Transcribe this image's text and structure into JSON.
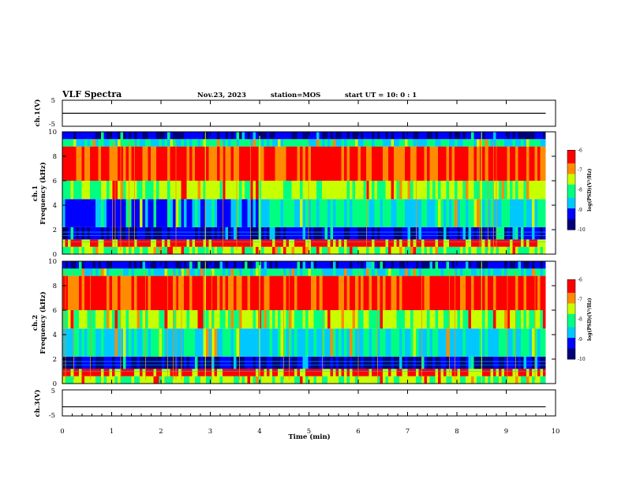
{
  "header": {
    "title": "VLF Spectra",
    "date": "Nov.23, 2023",
    "station": "station=MOS",
    "start_ut": "start UT =  10: 0  : 1"
  },
  "colors": {
    "spectrum": [
      "#00007a",
      "#0000ff",
      "#00c8ff",
      "#00ff80",
      "#c8ff00",
      "#ff8c00",
      "#ff0000",
      "#ffffff"
    ]
  },
  "chart_data": [
    {
      "type": "line",
      "panel": "ch1-voltage",
      "ylabel": "ch.1(V)",
      "y_ticks": [
        "5",
        "-5"
      ],
      "ylim": [
        -5,
        5
      ],
      "xlim": [
        0,
        10
      ],
      "series": [
        {
          "x": [
            0,
            9.8
          ],
          "y": [
            0,
            0
          ]
        }
      ]
    },
    {
      "type": "heatmap",
      "panel": "ch1-spectrogram",
      "ylabel": "ch.1\nFrequency (kHz)",
      "y_ticks": [
        "0",
        "2",
        "4",
        "6",
        "8",
        "10"
      ],
      "ylim": [
        0,
        10
      ],
      "xlim": [
        0,
        10
      ],
      "data_extent_min": 9.8,
      "colorbar": {
        "label": "log(PSD)(V²/Hz)",
        "ticks": [
          "-6",
          "-7",
          "-8",
          "-9",
          "-10"
        ],
        "range": [
          -10,
          -6
        ]
      },
      "events": [
        2.9,
        4.0,
        8.5
      ]
    },
    {
      "type": "heatmap",
      "panel": "ch2-spectrogram",
      "ylabel": "ch.2\nFrequency (kHz)",
      "y_ticks": [
        "0",
        "2",
        "4",
        "6",
        "8",
        "10"
      ],
      "ylim": [
        0,
        10
      ],
      "xlim": [
        0,
        10
      ],
      "data_extent_min": 9.8,
      "colorbar": {
        "label": "log(PSD)(V²/Hz)",
        "ticks": [
          "-6",
          "-7",
          "-8",
          "-9",
          "-10"
        ],
        "range": [
          -10,
          -6
        ]
      },
      "events": [
        2.9,
        4.0,
        8.5
      ]
    },
    {
      "type": "line",
      "panel": "ch3-voltage",
      "ylabel": "ch.3(V)",
      "y_ticks": [
        "5",
        "-5"
      ],
      "ylim": [
        -5,
        5
      ],
      "xlim": [
        0,
        10
      ],
      "xlabel": "Time (min)",
      "x_ticks": [
        "0",
        "1",
        "2",
        "3",
        "4",
        "5",
        "6",
        "7",
        "8",
        "9",
        "10"
      ],
      "series": [
        {
          "x": [
            0,
            9.8
          ],
          "y": [
            -1.5,
            -1.5
          ]
        }
      ]
    }
  ]
}
